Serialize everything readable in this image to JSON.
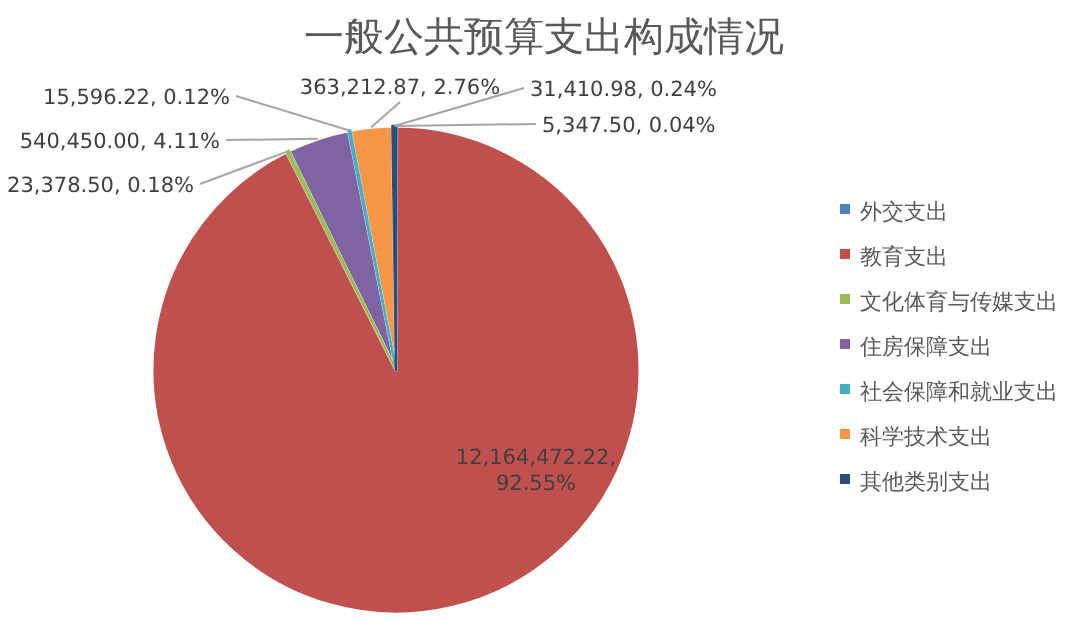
{
  "chart_data": {
    "type": "pie",
    "title": "一般公共预算支出构成情况",
    "categories": [
      "外交支出",
      "教育支出",
      "文化体育与传媒支出",
      "住房保障支出",
      "社会保障和就业支出",
      "科学技术支出",
      "其他类别支出"
    ],
    "values": [
      5347.5,
      12164472.22,
      23378.5,
      540450.0,
      15596.22,
      363212.87,
      31410.98
    ],
    "value_labels": [
      "5,347.50, 0.04%",
      "12,164,472.22, 92.55%",
      "23,378.50, 0.18%",
      "540,450.00, 4.11%",
      "15,596.22, 0.12%",
      "363,212.87, 2.76%",
      "31,410.98, 0.24%"
    ],
    "colors": [
      "#4f81bd",
      "#c0504d",
      "#9bbb59",
      "#8064a2",
      "#4bacc6",
      "#f79646",
      "#2c4d75"
    ],
    "legend": "right"
  }
}
